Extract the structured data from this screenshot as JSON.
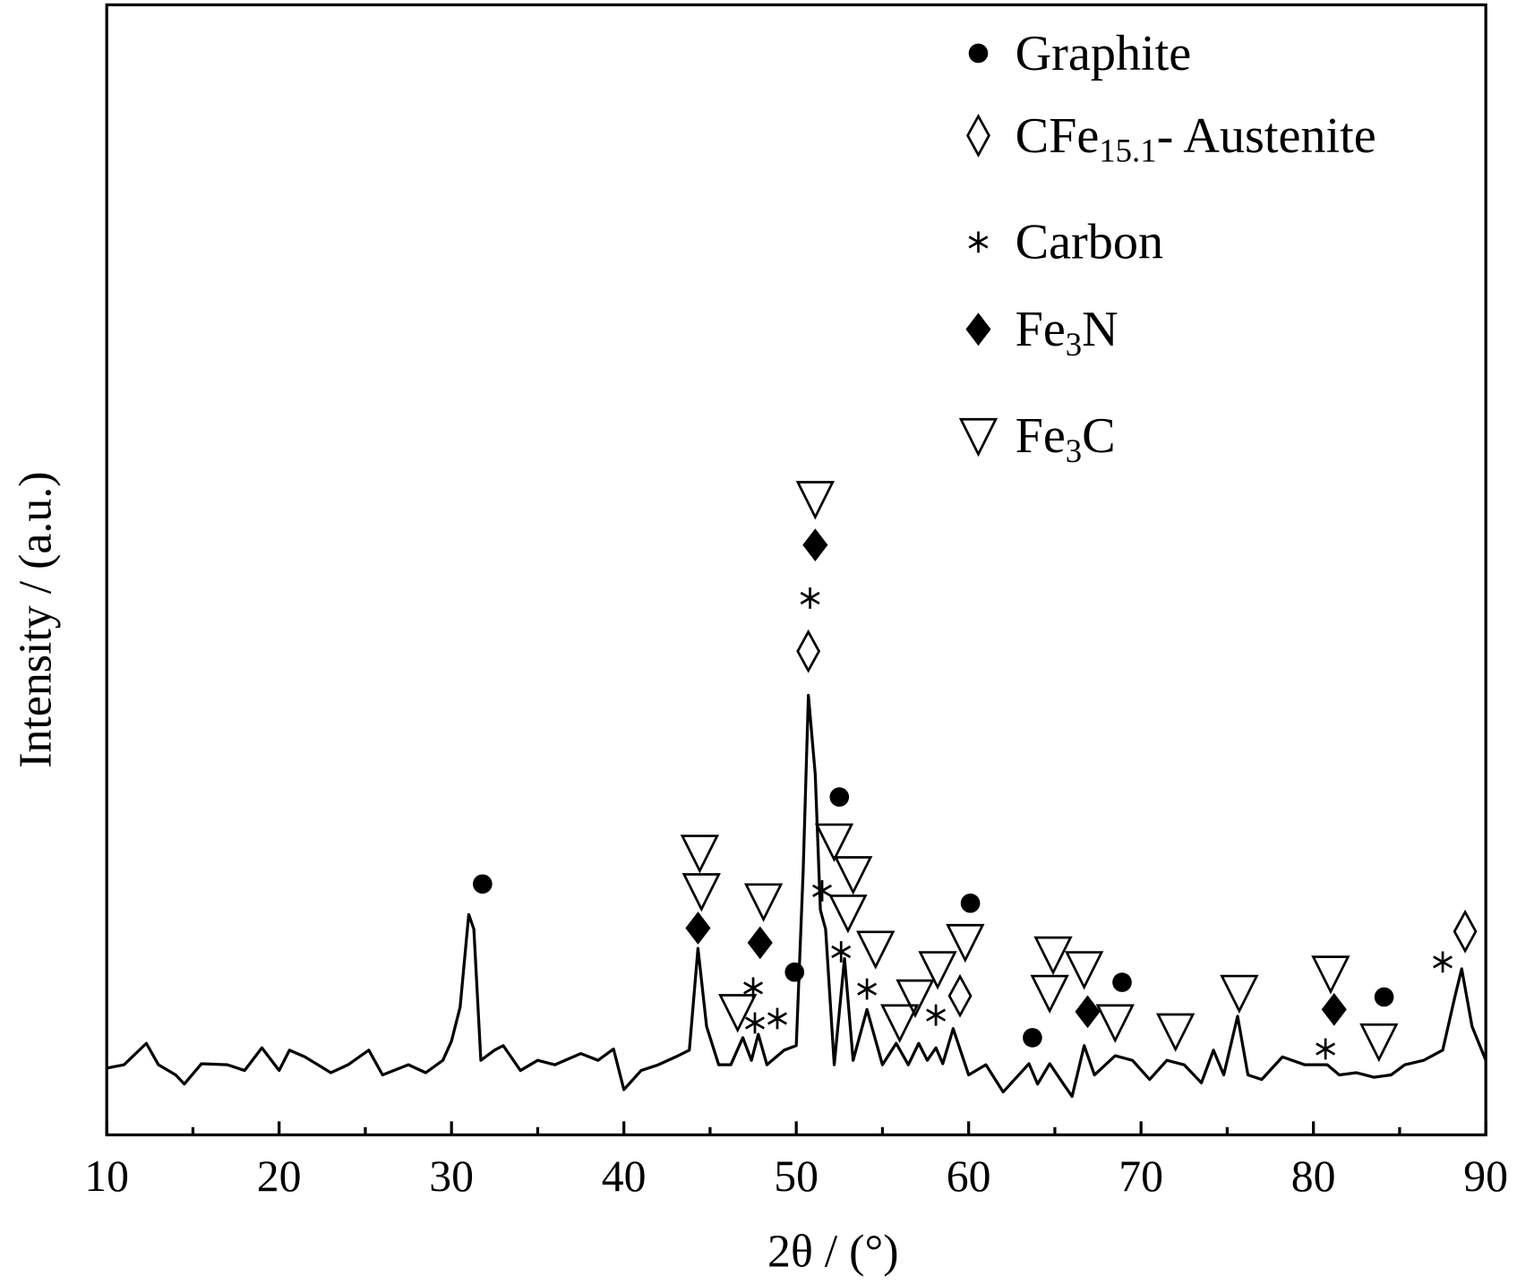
{
  "chart_data": {
    "type": "line",
    "xlabel": "2θ / (°)",
    "ylabel": "Intensity / (a.u.)",
    "xlim": [
      10,
      90
    ],
    "xticks": [
      10,
      20,
      30,
      40,
      50,
      60,
      70,
      80,
      90
    ],
    "xminorticks": [
      15,
      25,
      35,
      45,
      55,
      65,
      75,
      85
    ],
    "ylim": [
      0,
      100
    ],
    "color": "#000000",
    "x": [
      10,
      11,
      12.3,
      13,
      14,
      14.5,
      15.5,
      17,
      18,
      19,
      20,
      20.6,
      21.5,
      23,
      24,
      25.2,
      26,
      27.5,
      28.5,
      29.5,
      30,
      30.5,
      31,
      31.3,
      31.7,
      32.5,
      33,
      34,
      35,
      36,
      37.5,
      38.5,
      39.4,
      40,
      41,
      42,
      43,
      43.8,
      44.3,
      44.8,
      45.5,
      46.2,
      46.9,
      47.4,
      47.8,
      48.3,
      49.3,
      50,
      50.4,
      50.7,
      51.1,
      51.4,
      51.7,
      52.2,
      52.8,
      53.3,
      54.1,
      55,
      55.8,
      56.5,
      57.1,
      57.6,
      58.1,
      58.5,
      59.1,
      60,
      61,
      62,
      63.5,
      64,
      64.7,
      65.5,
      66,
      66.7,
      67.3,
      68.5,
      69.5,
      70.5,
      71.5,
      72.5,
      73.5,
      74.2,
      74.8,
      75.6,
      76.2,
      77,
      78.2,
      79.5,
      80.8,
      81.5,
      82.5,
      83.5,
      84.5,
      85.3,
      86.4,
      87.5,
      88.2,
      88.6,
      89.2,
      90
    ],
    "values": [
      5.9,
      6.2,
      8.1,
      6.2,
      5.3,
      4.5,
      6.3,
      6.2,
      5.7,
      7.7,
      5.7,
      7.5,
      6.9,
      5.5,
      6.2,
      7.5,
      5.3,
      6.2,
      5.5,
      6.6,
      8.3,
      11.3,
      19.5,
      18.2,
      6.6,
      7.5,
      7.9,
      5.7,
      6.6,
      6.2,
      7.2,
      6.6,
      7.6,
      4.0,
      5.7,
      6.2,
      6.9,
      7.5,
      16.5,
      9.6,
      6.2,
      6.2,
      8.6,
      6.6,
      8.9,
      6.2,
      7.5,
      7.9,
      23.3,
      38.9,
      31.9,
      19.9,
      18.2,
      6.2,
      15.6,
      6.6,
      11.1,
      6.2,
      8.1,
      6.2,
      8.1,
      6.6,
      7.7,
      6.3,
      9.4,
      5.3,
      6.2,
      3.8,
      6.3,
      4.5,
      6.3,
      4.5,
      3.4,
      7.9,
      5.3,
      7.0,
      6.6,
      4.9,
      6.6,
      6.2,
      4.6,
      7.5,
      5.3,
      10.5,
      5.3,
      4.9,
      6.9,
      6.2,
      6.2,
      5.3,
      5.5,
      5.1,
      5.3,
      6.2,
      6.6,
      7.5,
      12.2,
      14.7,
      9.6,
      6.6
    ],
    "phases": [
      {
        "name": "Graphite",
        "symbol": "filled-circle",
        "x": [
          31.8,
          52.5,
          49.9,
          60.1,
          63.7,
          68.9,
          84.1
        ],
        "y": [
          22.2,
          29.9,
          14.4,
          20.5,
          8.6,
          13.5,
          12.2
        ]
      },
      {
        "name": "CFe15.1- Austenite",
        "symbol": "open-diamond",
        "x": [
          50.7,
          59.5,
          88.8
        ],
        "y": [
          42.8,
          12.3,
          18.0
        ]
      },
      {
        "name": "Carbon",
        "symbol": "asterisk",
        "x": [
          50.8,
          51.5,
          52.6,
          54.1,
          47.5,
          47.6,
          48.9,
          58.1,
          80.7,
          87.5
        ],
        "y": [
          47.5,
          21.6,
          16.2,
          12.9,
          13.0,
          9.9,
          10.3,
          10.6,
          7.6,
          15.3
        ]
      },
      {
        "name": "Fe3N",
        "symbol": "filled-diamond",
        "x": [
          51.1,
          44.3,
          47.9,
          66.9,
          81.2
        ],
        "y": [
          52.2,
          18.3,
          17.0,
          10.9,
          11.1
        ]
      },
      {
        "name": "Fe3C",
        "symbol": "open-triangle-down",
        "x": [
          51.1,
          44.4,
          44.5,
          48.1,
          46.6,
          52.2,
          53.3,
          53.0,
          54.6,
          56.0,
          56.9,
          58.2,
          59.8,
          64.9,
          64.7,
          66.7,
          68.5,
          72.0,
          75.7,
          81.0,
          83.8
        ],
        "y": [
          56.3,
          25.0,
          21.6,
          20.7,
          10.9,
          26.0,
          23.1,
          19.7,
          16.5,
          10.0,
          12.2,
          14.7,
          17.1,
          16.0,
          12.6,
          14.7,
          10.0,
          9.2,
          12.6,
          14.3,
          8.3
        ]
      }
    ]
  }
}
